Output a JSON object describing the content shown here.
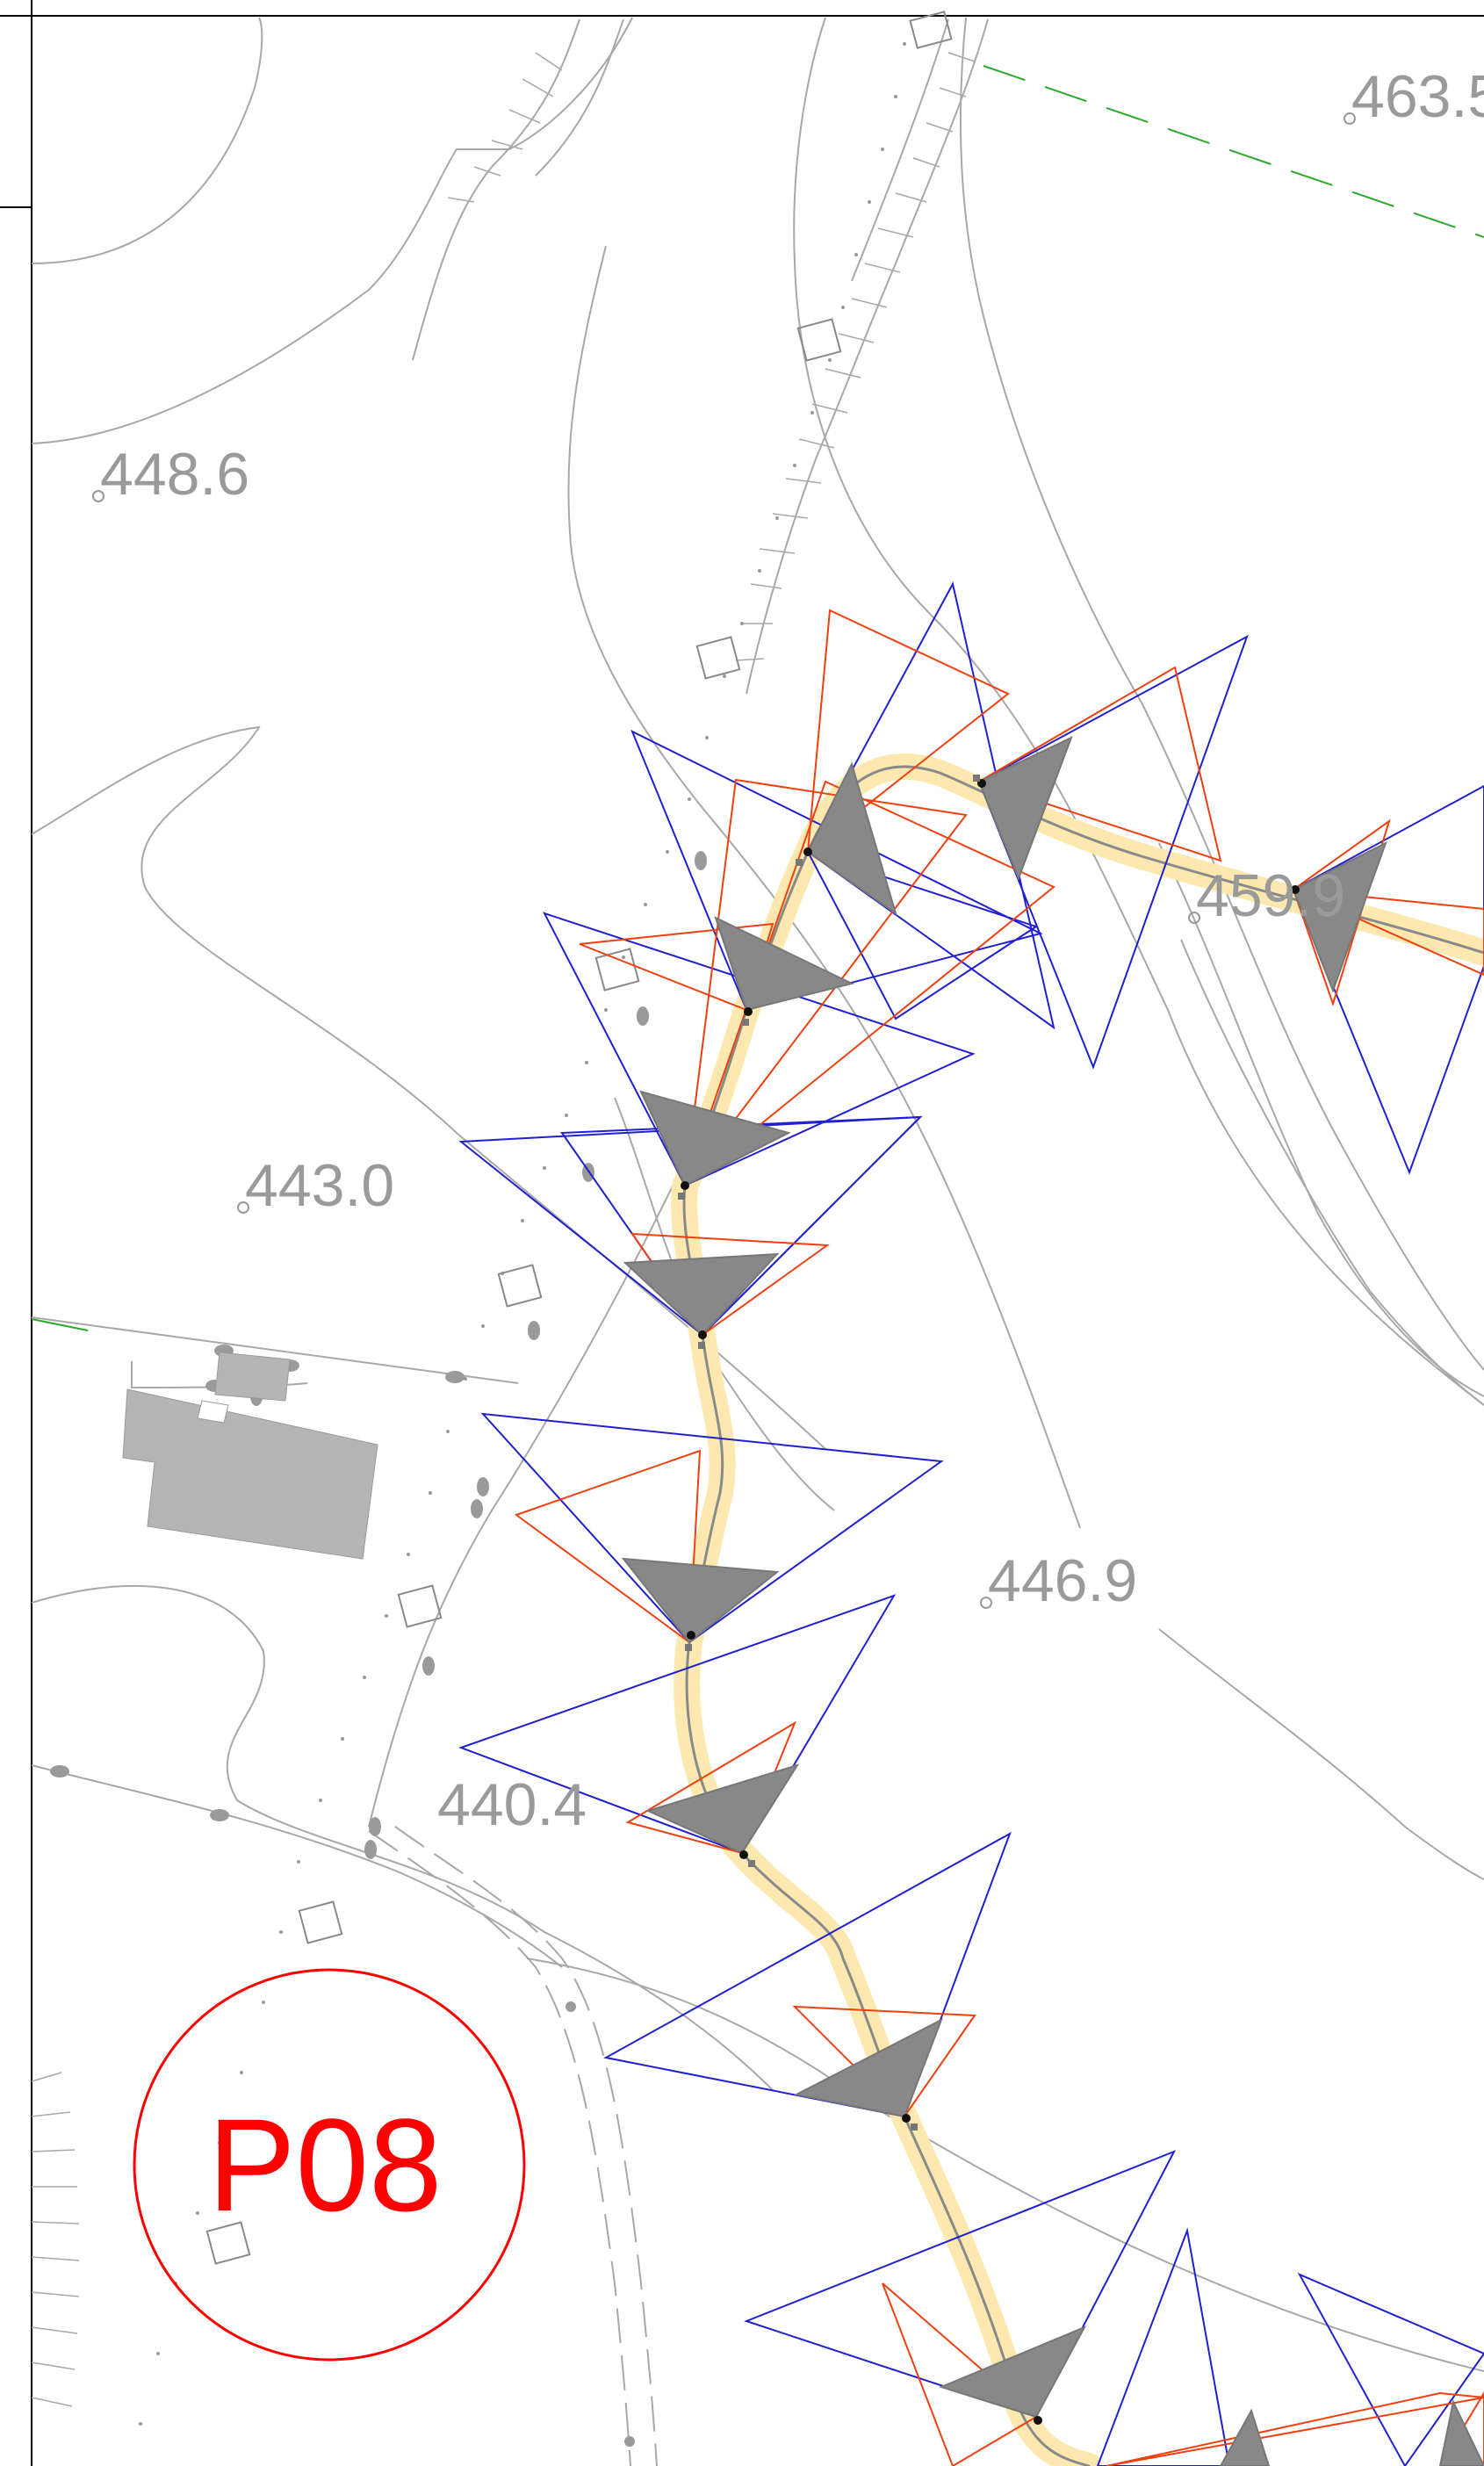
{
  "map": {
    "elevations": [
      {
        "id": "elev-463",
        "label": "463.5"
      },
      {
        "id": "elev-448",
        "label": "448.6"
      },
      {
        "id": "elev-459",
        "label": "459.9"
      },
      {
        "id": "elev-443",
        "label": "443.0"
      },
      {
        "id": "elev-446",
        "label": "446.9"
      },
      {
        "id": "elev-440",
        "label": "440.4"
      }
    ],
    "sheet_marker": {
      "label": "P08"
    },
    "colors": {
      "background": "#ffffff",
      "contour": "#9a9a9a",
      "route_fill": "#fdebb5",
      "route_center": "#8a8a8a",
      "view_cone_blue": "#2020d0",
      "view_cone_red": "#f04010",
      "view_cone_fill": "#888888",
      "marker": "#ff0000",
      "boundary_green": "#2ea82e",
      "building": "#b5b5b5"
    }
  }
}
